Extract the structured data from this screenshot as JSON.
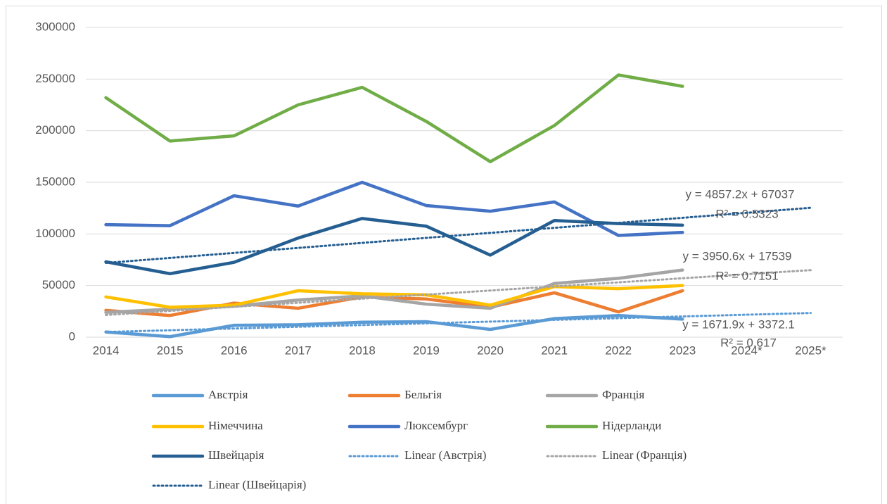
{
  "chart_data": {
    "type": "line",
    "categories": [
      "2014",
      "2015",
      "2016",
      "2017",
      "2018",
      "2019",
      "2020",
      "2021",
      "2022",
      "2023",
      "2024*",
      "2025*"
    ],
    "ylim": [
      0,
      300000
    ],
    "yticks": [
      0,
      50000,
      100000,
      150000,
      200000,
      250000,
      300000
    ],
    "grid": true,
    "series": [
      {
        "name": "Австрія",
        "color": "#5b9bd5",
        "values": [
          5000,
          500,
          11500,
          12000,
          14500,
          15000,
          7500,
          18000,
          21000,
          17500,
          null,
          null
        ]
      },
      {
        "name": "Бельгія",
        "color": "#ed7d31",
        "values": [
          26000,
          21000,
          33000,
          28000,
          39000,
          37000,
          29000,
          43000,
          24500,
          45000,
          null,
          null
        ]
      },
      {
        "name": "Франція",
        "color": "#a5a5a5",
        "values": [
          24000,
          27000,
          30000,
          36000,
          40000,
          32000,
          28000,
          52000,
          57000,
          65000,
          null,
          null
        ]
      },
      {
        "name": "Німеччина",
        "color": "#ffc000",
        "values": [
          39000,
          29000,
          31000,
          45000,
          42000,
          41000,
          31000,
          49000,
          47000,
          50000,
          null,
          null
        ]
      },
      {
        "name": "Люксембург",
        "color": "#4472c4",
        "values": [
          109000,
          108000,
          137000,
          127000,
          150000,
          127500,
          122000,
          131000,
          98500,
          101500,
          null,
          null
        ]
      },
      {
        "name": "Нідерланди",
        "color": "#70ad47",
        "values": [
          232000,
          190000,
          195000,
          225000,
          242000,
          209000,
          170000,
          205000,
          254000,
          243000,
          null,
          null
        ]
      },
      {
        "name": "Швейцарія",
        "color": "#255e91",
        "values": [
          73000,
          61500,
          72500,
          96000,
          115000,
          107500,
          79500,
          113000,
          110000,
          108500,
          null,
          null
        ]
      },
      {
        "name": "Linear (Австрія)",
        "color": "#5b9bd5",
        "dash": "dotted",
        "values": [
          5044,
          6716,
          8388,
          10060,
          11732,
          13404,
          15075,
          16747,
          18419,
          20091,
          21763,
          23435
        ]
      },
      {
        "name": "Linear (Франція)",
        "color": "#a5a5a5",
        "dash": "dotted",
        "values": [
          21490,
          25440,
          29391,
          33342,
          37292,
          41243,
          45193,
          49144,
          53094,
          57045,
          60996,
          64946
        ]
      },
      {
        "name": "Linear (Швейцарія)",
        "color": "#255e91",
        "dash": "dotted",
        "values": [
          71894,
          76751,
          81609,
          86466,
          91323,
          96180,
          101037,
          105895,
          110752,
          115609,
          120466,
          125323
        ]
      }
    ],
    "annotations": [
      "y = 4857.2x + 67037",
      "R² = 0.5323",
      "y = 3950.6x + 17539",
      "R² = 0.7151",
      "y = 1671.9x + 3372.1",
      "R² = 0.617"
    ]
  }
}
